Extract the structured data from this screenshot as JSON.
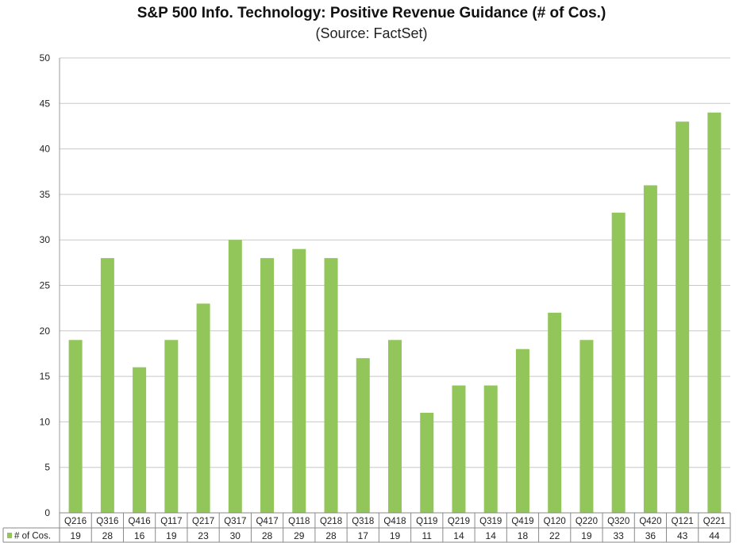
{
  "chart_data": {
    "type": "bar",
    "title": "S&P 500 Info. Technology: Positive Revenue Guidance (# of Cos.)",
    "subtitle": "(Source: FactSet)",
    "xlabel": "",
    "ylabel": "",
    "ylim": [
      0,
      50
    ],
    "yticks": [
      "0",
      "5",
      "10",
      "15",
      "20",
      "25",
      "30",
      "35",
      "40",
      "45",
      "50"
    ],
    "grid": true,
    "bar_color": "#92c55a",
    "categories": [
      "Q216",
      "Q316",
      "Q416",
      "Q117",
      "Q217",
      "Q317",
      "Q417",
      "Q118",
      "Q218",
      "Q318",
      "Q418",
      "Q119",
      "Q219",
      "Q319",
      "Q419",
      "Q120",
      "Q220",
      "Q320",
      "Q420",
      "Q121",
      "Q221"
    ],
    "series": [
      {
        "name": "# of Cos.",
        "values": [
          19,
          28,
          16,
          19,
          23,
          30,
          28,
          29,
          28,
          17,
          19,
          11,
          14,
          14,
          18,
          22,
          19,
          33,
          36,
          43,
          44
        ],
        "labels": [
          "19",
          "28",
          "16",
          "19",
          "23",
          "30",
          "28",
          "29",
          "28",
          "17",
          "19",
          "11",
          "14",
          "14",
          "18",
          "22",
          "19",
          "33",
          "36",
          "43",
          "44"
        ]
      }
    ]
  }
}
